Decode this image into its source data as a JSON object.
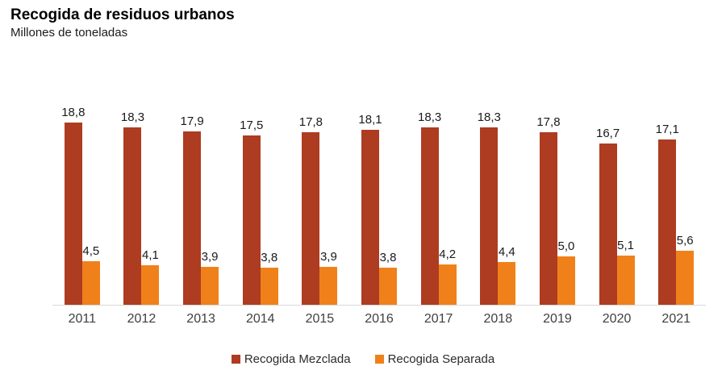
{
  "header": {
    "title": "Recogida de residuos urbanos",
    "subtitle": "Millones de toneladas"
  },
  "chart_data": {
    "type": "bar",
    "title": "Recogida de residuos urbanos",
    "ylabel": "Millones de toneladas",
    "categories": [
      "2011",
      "2012",
      "2013",
      "2014",
      "2015",
      "2016",
      "2017",
      "2018",
      "2019",
      "2020",
      "2021"
    ],
    "series": [
      {
        "name": "Recogida Mezclada",
        "color": "#ad3c21",
        "values": [
          18.8,
          18.3,
          17.9,
          17.5,
          17.8,
          18.1,
          18.3,
          18.3,
          17.8,
          16.7,
          17.1
        ]
      },
      {
        "name": "Recogida Separada",
        "color": "#f0811a",
        "values": [
          4.5,
          4.1,
          3.9,
          3.8,
          3.9,
          3.8,
          4.2,
          4.4,
          5.0,
          5.1,
          5.6
        ]
      }
    ],
    "ylim": [
      0,
      20
    ],
    "grid": false,
    "legend_position": "bottom",
    "decimal_separator": ",",
    "value_labels": true,
    "axis_line_color": "#d9d9d9"
  },
  "legend": {
    "items": [
      {
        "label": "Recogida Mezclada",
        "color": "#ad3c21"
      },
      {
        "label": "Recogida Separada",
        "color": "#f0811a"
      }
    ]
  }
}
